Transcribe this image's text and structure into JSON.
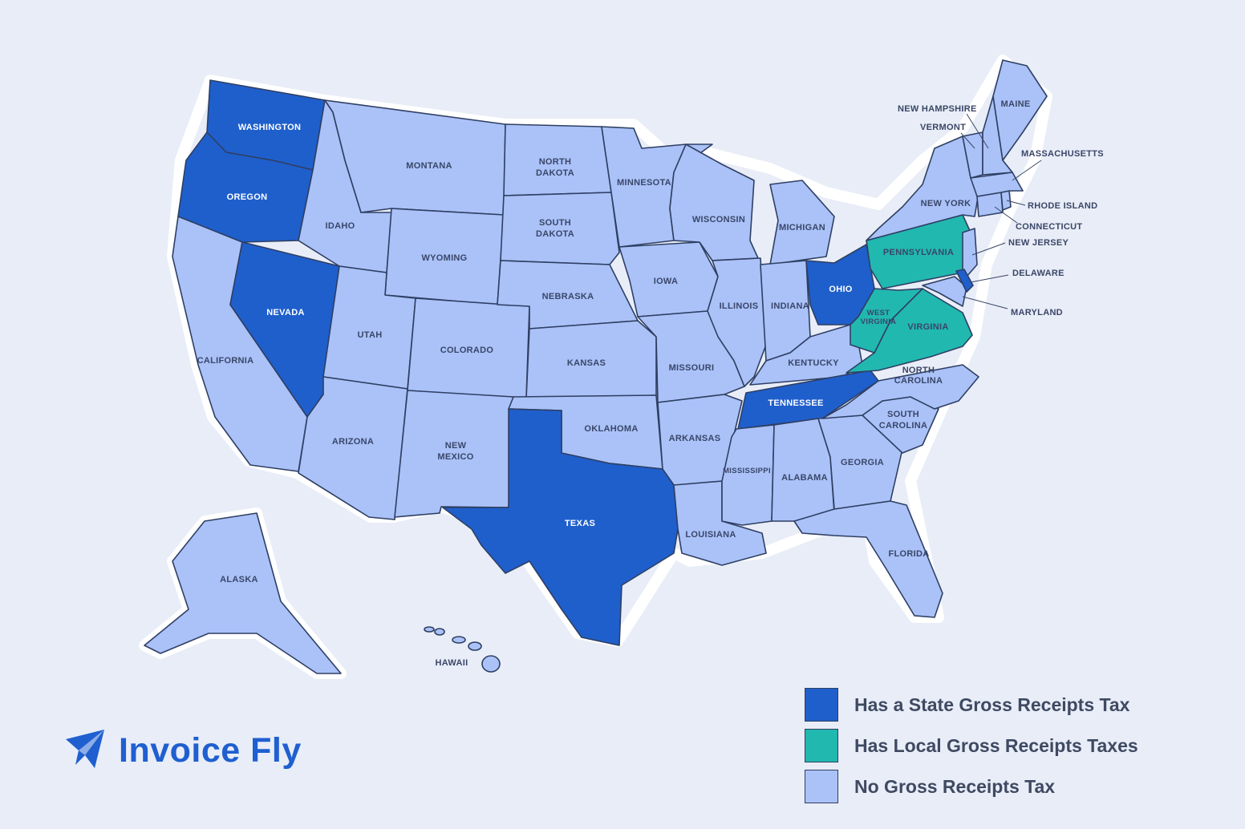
{
  "colors": {
    "state_tax": "#1f5fcc",
    "local_tax": "#21b8b0",
    "no_tax": "#aac2f8",
    "brand": "#1f5fd0"
  },
  "states": {
    "washington": {
      "label": "WASHINGTON",
      "category": "state_tax"
    },
    "oregon": {
      "label": "OREGON",
      "category": "state_tax"
    },
    "california": {
      "label": "CALIFORNIA",
      "category": "no_tax"
    },
    "nevada": {
      "label": "NEVADA",
      "category": "state_tax"
    },
    "idaho": {
      "label": "IDAHO",
      "category": "no_tax"
    },
    "montana": {
      "label": "MONTANA",
      "category": "no_tax"
    },
    "wyoming": {
      "label": "WYOMING",
      "category": "no_tax"
    },
    "utah": {
      "label": "UTAH",
      "category": "no_tax"
    },
    "arizona": {
      "label": "ARIZONA",
      "category": "no_tax"
    },
    "colorado": {
      "label": "COLORADO",
      "category": "no_tax"
    },
    "new_mexico": {
      "label_line1": "NEW",
      "label_line2": "MEXICO",
      "category": "no_tax"
    },
    "north_dakota": {
      "label_line1": "NORTH",
      "label_line2": "DAKOTA",
      "category": "no_tax"
    },
    "south_dakota": {
      "label_line1": "SOUTH",
      "label_line2": "DAKOTA",
      "category": "no_tax"
    },
    "nebraska": {
      "label": "NEBRASKA",
      "category": "no_tax"
    },
    "kansas": {
      "label": "KANSAS",
      "category": "no_tax"
    },
    "oklahoma": {
      "label": "OKLAHOMA",
      "category": "no_tax"
    },
    "texas": {
      "label": "TEXAS",
      "category": "state_tax"
    },
    "minnesota": {
      "label": "MINNESOTA",
      "category": "no_tax"
    },
    "iowa": {
      "label": "IOWA",
      "category": "no_tax"
    },
    "missouri": {
      "label": "MISSOURI",
      "category": "no_tax"
    },
    "arkansas": {
      "label": "ARKANSAS",
      "category": "no_tax"
    },
    "louisiana": {
      "label": "LOUISIANA",
      "category": "no_tax"
    },
    "wisconsin": {
      "label": "WISCONSIN",
      "category": "no_tax"
    },
    "illinois": {
      "label": "ILLINOIS",
      "category": "no_tax"
    },
    "michigan": {
      "label": "MICHIGAN",
      "category": "no_tax"
    },
    "indiana": {
      "label": "INDIANA",
      "category": "no_tax"
    },
    "ohio": {
      "label": "OHIO",
      "category": "state_tax"
    },
    "kentucky": {
      "label": "KENTUCKY",
      "category": "no_tax"
    },
    "tennessee": {
      "label": "TENNESSEE",
      "category": "state_tax"
    },
    "mississippi": {
      "label": "MISSISSIPPI",
      "category": "no_tax"
    },
    "alabama": {
      "label": "ALABAMA",
      "category": "no_tax"
    },
    "georgia": {
      "label": "GEORGIA",
      "category": "no_tax"
    },
    "florida": {
      "label": "FLORIDA",
      "category": "no_tax"
    },
    "south_carolina": {
      "label_line1": "SOUTH",
      "label_line2": "CAROLINA",
      "category": "no_tax"
    },
    "north_carolina": {
      "label_line1": "NORTH",
      "label_line2": "CAROLINA",
      "category": "no_tax"
    },
    "virginia": {
      "label": "VIRGINIA",
      "category": "local_tax"
    },
    "west_virginia": {
      "label_line1": "WEST",
      "label_line2": "VIRGINIA",
      "category": "local_tax"
    },
    "pennsylvania": {
      "label": "PENNSYLVANIA",
      "category": "local_tax"
    },
    "new_york": {
      "label": "NEW YORK",
      "category": "no_tax"
    },
    "maryland": {
      "label": "MARYLAND",
      "category": "no_tax"
    },
    "delaware": {
      "label": "DELAWARE",
      "category": "state_tax"
    },
    "new_jersey": {
      "label": "NEW JERSEY",
      "category": "no_tax"
    },
    "connecticut": {
      "label": "CONNECTICUT",
      "category": "no_tax"
    },
    "rhode_island": {
      "label": "RHODE ISLAND",
      "category": "no_tax"
    },
    "massachusetts": {
      "label": "MASSACHUSETTS",
      "category": "no_tax"
    },
    "vermont": {
      "label": "VERMONT",
      "category": "no_tax"
    },
    "new_hampshire": {
      "label": "NEW HAMPSHIRE",
      "category": "no_tax"
    },
    "maine": {
      "label": "MAINE",
      "category": "no_tax"
    },
    "alaska": {
      "label": "ALASKA",
      "category": "no_tax"
    },
    "hawaii": {
      "label": "HAWAII",
      "category": "no_tax"
    }
  },
  "legend": [
    {
      "label": "Has a State Gross Receipts Tax",
      "category": "state_tax"
    },
    {
      "label": "Has Local Gross Receipts Taxes",
      "category": "local_tax"
    },
    {
      "label": "No Gross Receipts Tax",
      "category": "no_tax"
    }
  ],
  "brand": {
    "name": "Invoice Fly",
    "icon": "paper-plane-icon"
  }
}
